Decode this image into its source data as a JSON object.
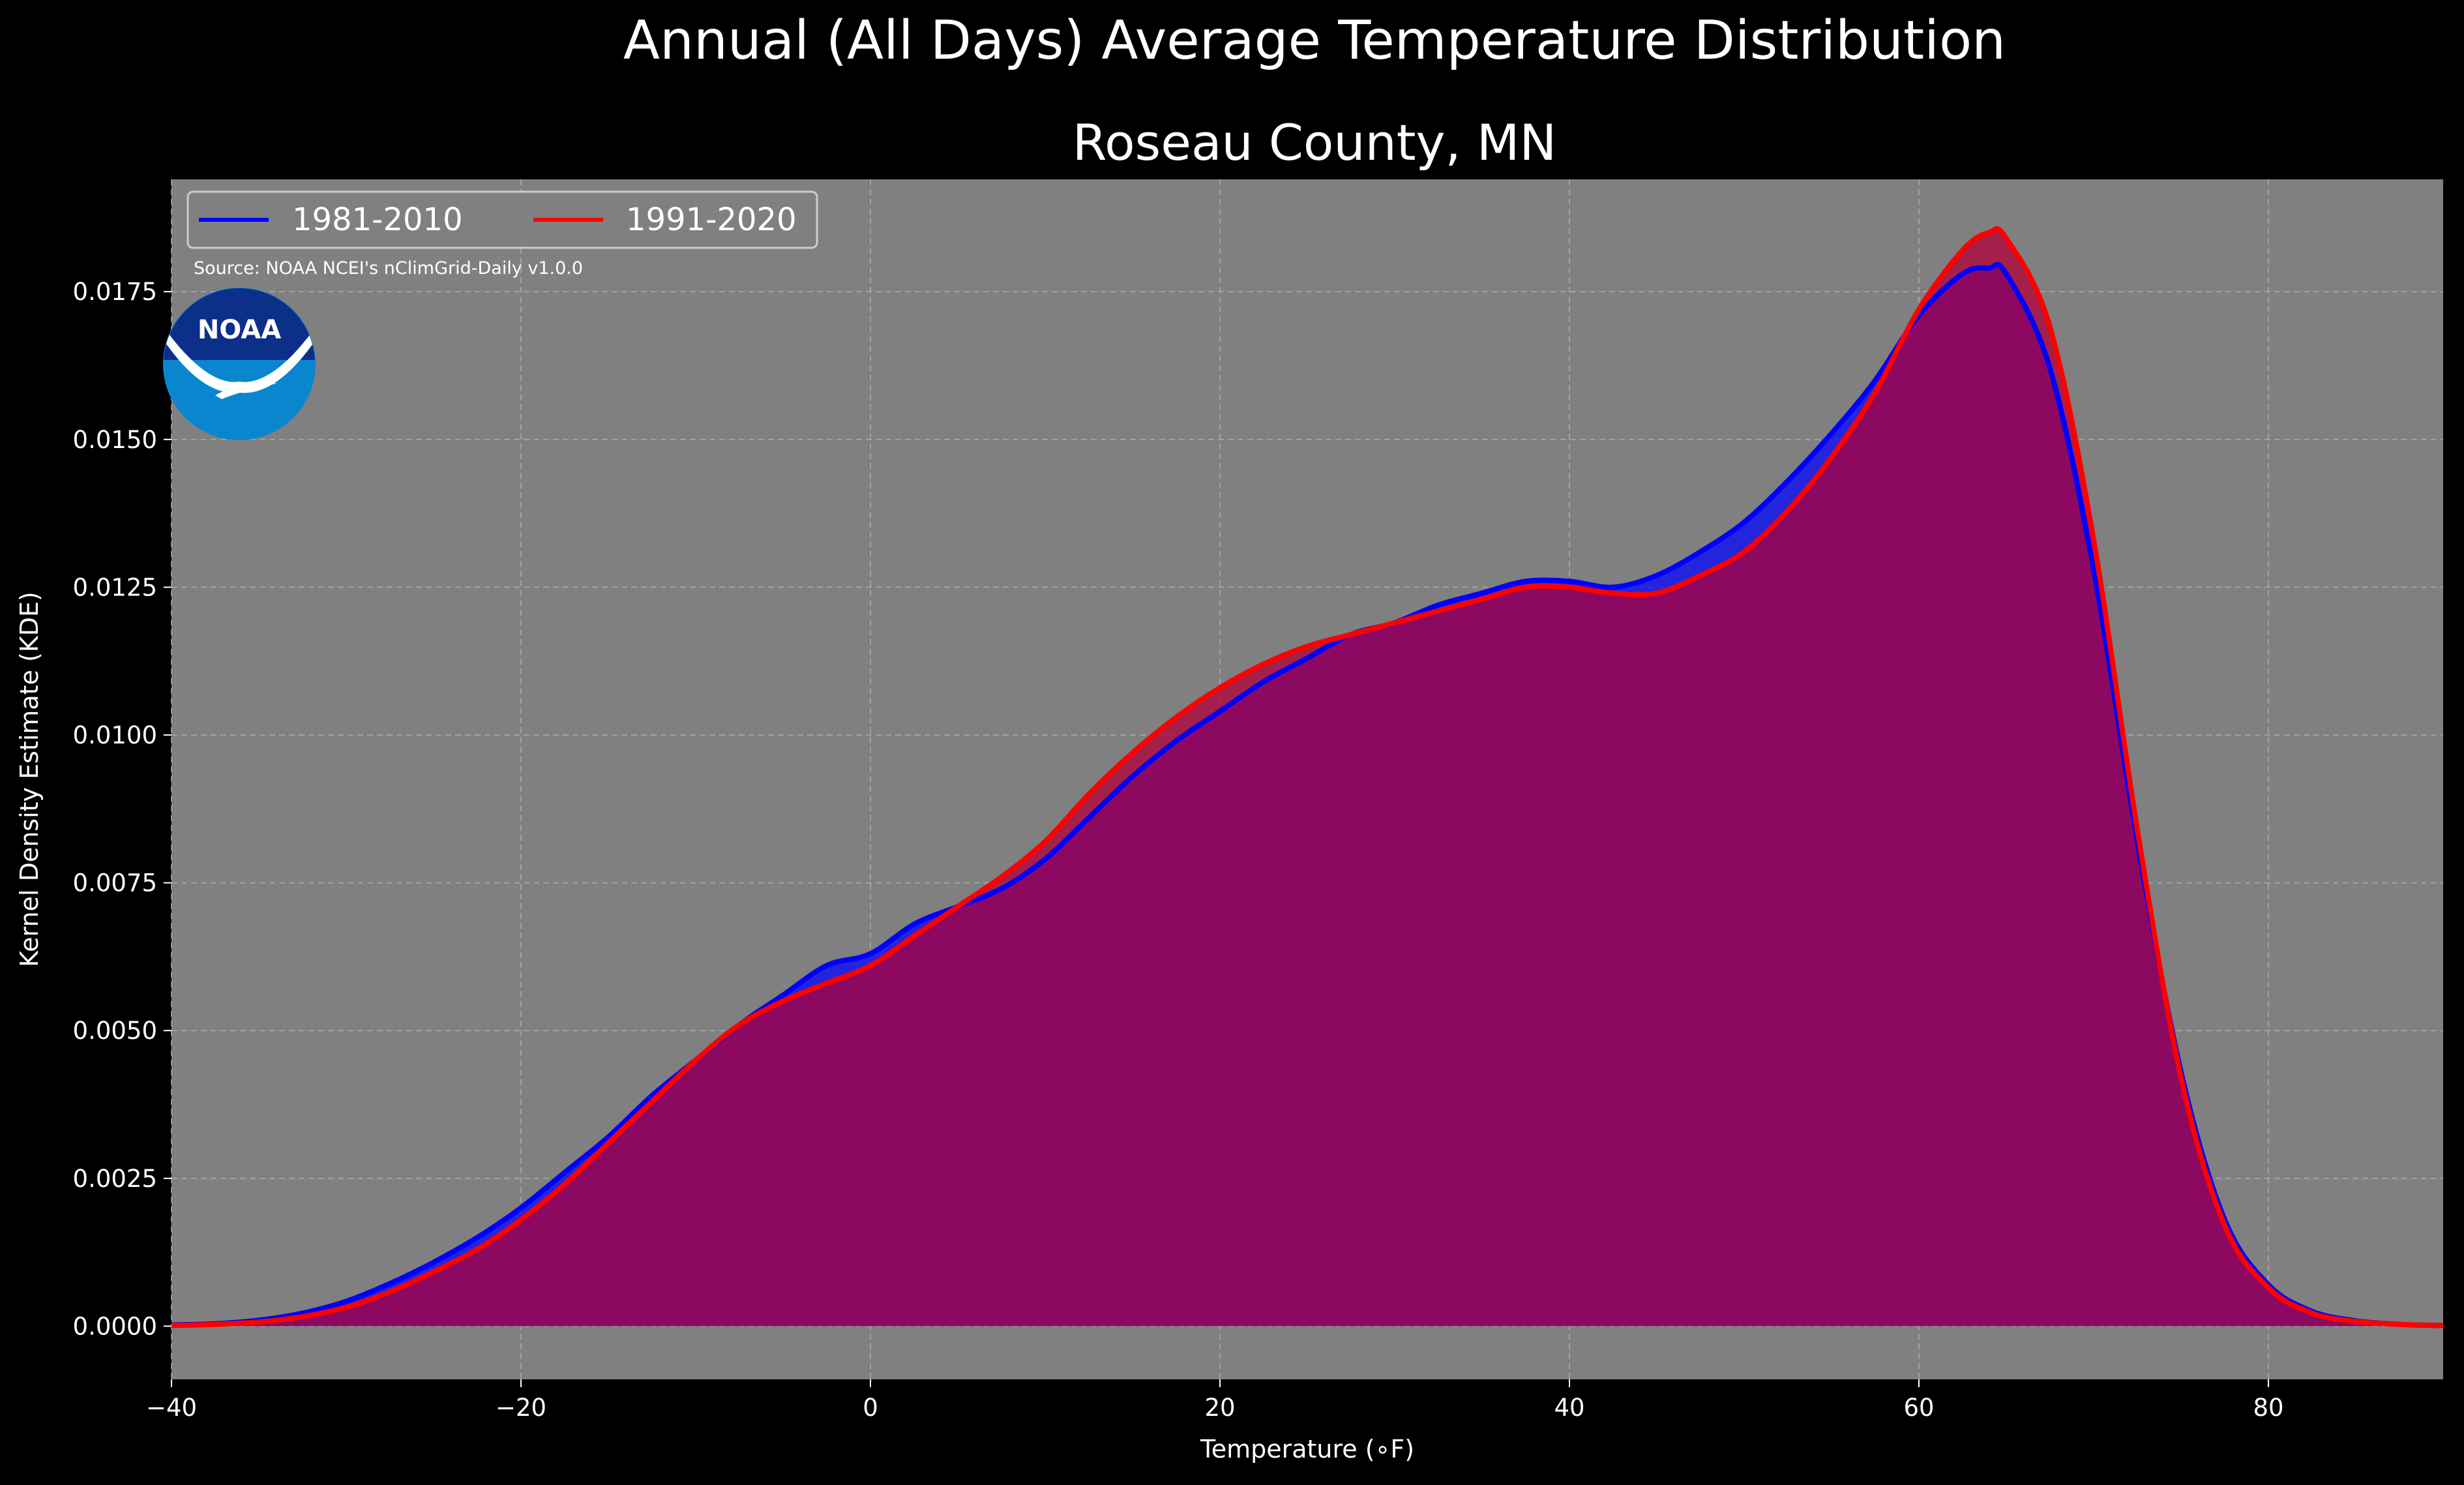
{
  "chart_data": {
    "type": "area",
    "suptitle": "Annual (All Days) Average Temperature Distribution",
    "title": "Roseau County, MN",
    "xlabel": "Temperature (∘F)",
    "ylabel": "Kernel Density Estimate (KDE)",
    "xlim": [
      -40,
      90
    ],
    "ylim": [
      -0.0009,
      0.0194
    ],
    "xticks": [
      -40,
      -20,
      0,
      20,
      40,
      60,
      80
    ],
    "xtick_labels": [
      "−40",
      "−20",
      "0",
      "20",
      "40",
      "60",
      "80"
    ],
    "yticks": [
      0.0,
      0.0025,
      0.005,
      0.0075,
      0.01,
      0.0125,
      0.015,
      0.0175
    ],
    "ytick_labels": [
      "0.0000",
      "0.0025",
      "0.0050",
      "0.0075",
      "0.0100",
      "0.0125",
      "0.0150",
      "0.0175"
    ],
    "grid": true,
    "legend_position": "top-left",
    "x": [
      -40,
      -37.5,
      -35,
      -32.5,
      -30,
      -27.5,
      -25,
      -22.5,
      -20,
      -17.5,
      -15,
      -12.5,
      -10,
      -7.5,
      -5,
      -2.5,
      0,
      2.5,
      5,
      7.5,
      10,
      12.5,
      15,
      17.5,
      20,
      22.5,
      25,
      27.5,
      30,
      32.5,
      35,
      37.5,
      40,
      42.5,
      45,
      47.5,
      50,
      52.5,
      55,
      57.5,
      60,
      62.5,
      64,
      65,
      67.5,
      70,
      72.5,
      75,
      77.5,
      80,
      82.5,
      85,
      87.5,
      90
    ],
    "series": [
      {
        "name": "1981-2010",
        "color": "#0000ff",
        "values": [
          2e-05,
          4e-05,
          0.0001,
          0.00022,
          0.00042,
          0.00072,
          0.00108,
          0.0015,
          0.002,
          0.0026,
          0.0032,
          0.0039,
          0.0045,
          0.0051,
          0.0056,
          0.0061,
          0.0063,
          0.0068,
          0.0071,
          0.0074,
          0.0079,
          0.0086,
          0.0093,
          0.0099,
          0.0104,
          0.0109,
          0.0113,
          0.0117,
          0.0119,
          0.0122,
          0.0124,
          0.0126,
          0.0126,
          0.0125,
          0.0127,
          0.0131,
          0.0136,
          0.0143,
          0.0151,
          0.016,
          0.0171,
          0.0178,
          0.0179,
          0.0178,
          0.0162,
          0.0128,
          0.0082,
          0.0043,
          0.0018,
          0.0007,
          0.00025,
          9e-05,
          3e-05,
          1e-05
        ]
      },
      {
        "name": "1991-2020",
        "color": "#ff0000",
        "values": [
          1e-05,
          3e-05,
          7e-05,
          0.00016,
          0.00032,
          0.00058,
          0.00092,
          0.0013,
          0.0018,
          0.0024,
          0.0031,
          0.0038,
          0.0045,
          0.0051,
          0.0055,
          0.0058,
          0.0061,
          0.0066,
          0.0071,
          0.0076,
          0.0082,
          0.009,
          0.0097,
          0.0103,
          0.0108,
          0.0112,
          0.0115,
          0.0117,
          0.0119,
          0.0121,
          0.0123,
          0.0125,
          0.0125,
          0.0124,
          0.0124,
          0.0127,
          0.0131,
          0.0138,
          0.0147,
          0.0158,
          0.0172,
          0.0182,
          0.0185,
          0.0184,
          0.0169,
          0.0133,
          0.0084,
          0.0042,
          0.0017,
          0.00065,
          0.00022,
          8e-05,
          3e-05,
          1e-05
        ]
      }
    ],
    "annotations": [
      "Source: NOAA NCEI's nClimGrid-Daily v1.0.0"
    ],
    "logo": "NOAA"
  },
  "colors": {
    "background": "#000000",
    "plot_bg": "#808080",
    "grid": "#b0b0b0",
    "fill_1981": "#0000ff",
    "fill_1991": "#b00038"
  }
}
